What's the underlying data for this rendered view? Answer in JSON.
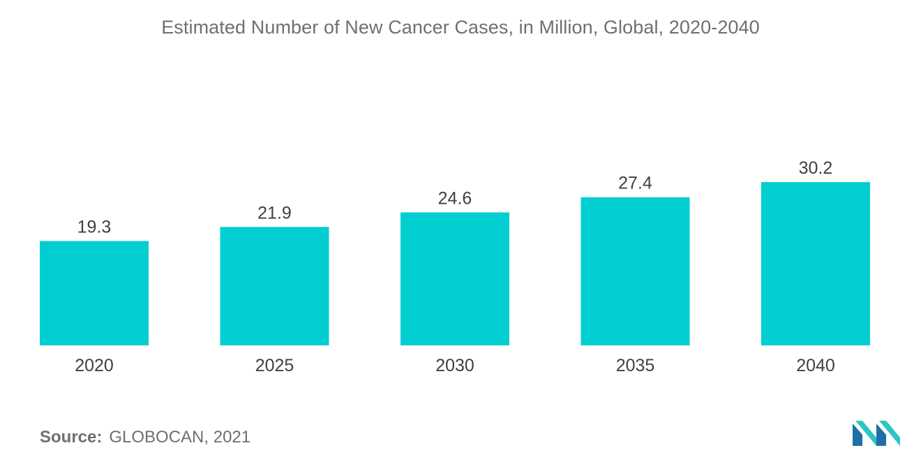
{
  "chart_data": {
    "type": "bar",
    "title": "Estimated Number of New Cancer Cases, in Million, Global, 2020-2040",
    "xlabel": "",
    "ylabel": "",
    "categories": [
      "2020",
      "2025",
      "2030",
      "2035",
      "2040"
    ],
    "values": [
      19.3,
      21.9,
      24.6,
      27.4,
      30.2
    ],
    "data_labels": [
      "19.3",
      "21.9",
      "24.6",
      "27.4",
      "30.2"
    ],
    "ylim": [
      0,
      30.2
    ],
    "grid": false,
    "legend": "none",
    "bar_color": "#00ced1"
  },
  "source": {
    "label": "Source:",
    "text": "GLOBOCAN, 2021"
  },
  "logo": {
    "icon": "mordor-intelligence-logo-icon",
    "colors": [
      "#1f6fa6",
      "#2ec4c4"
    ]
  }
}
